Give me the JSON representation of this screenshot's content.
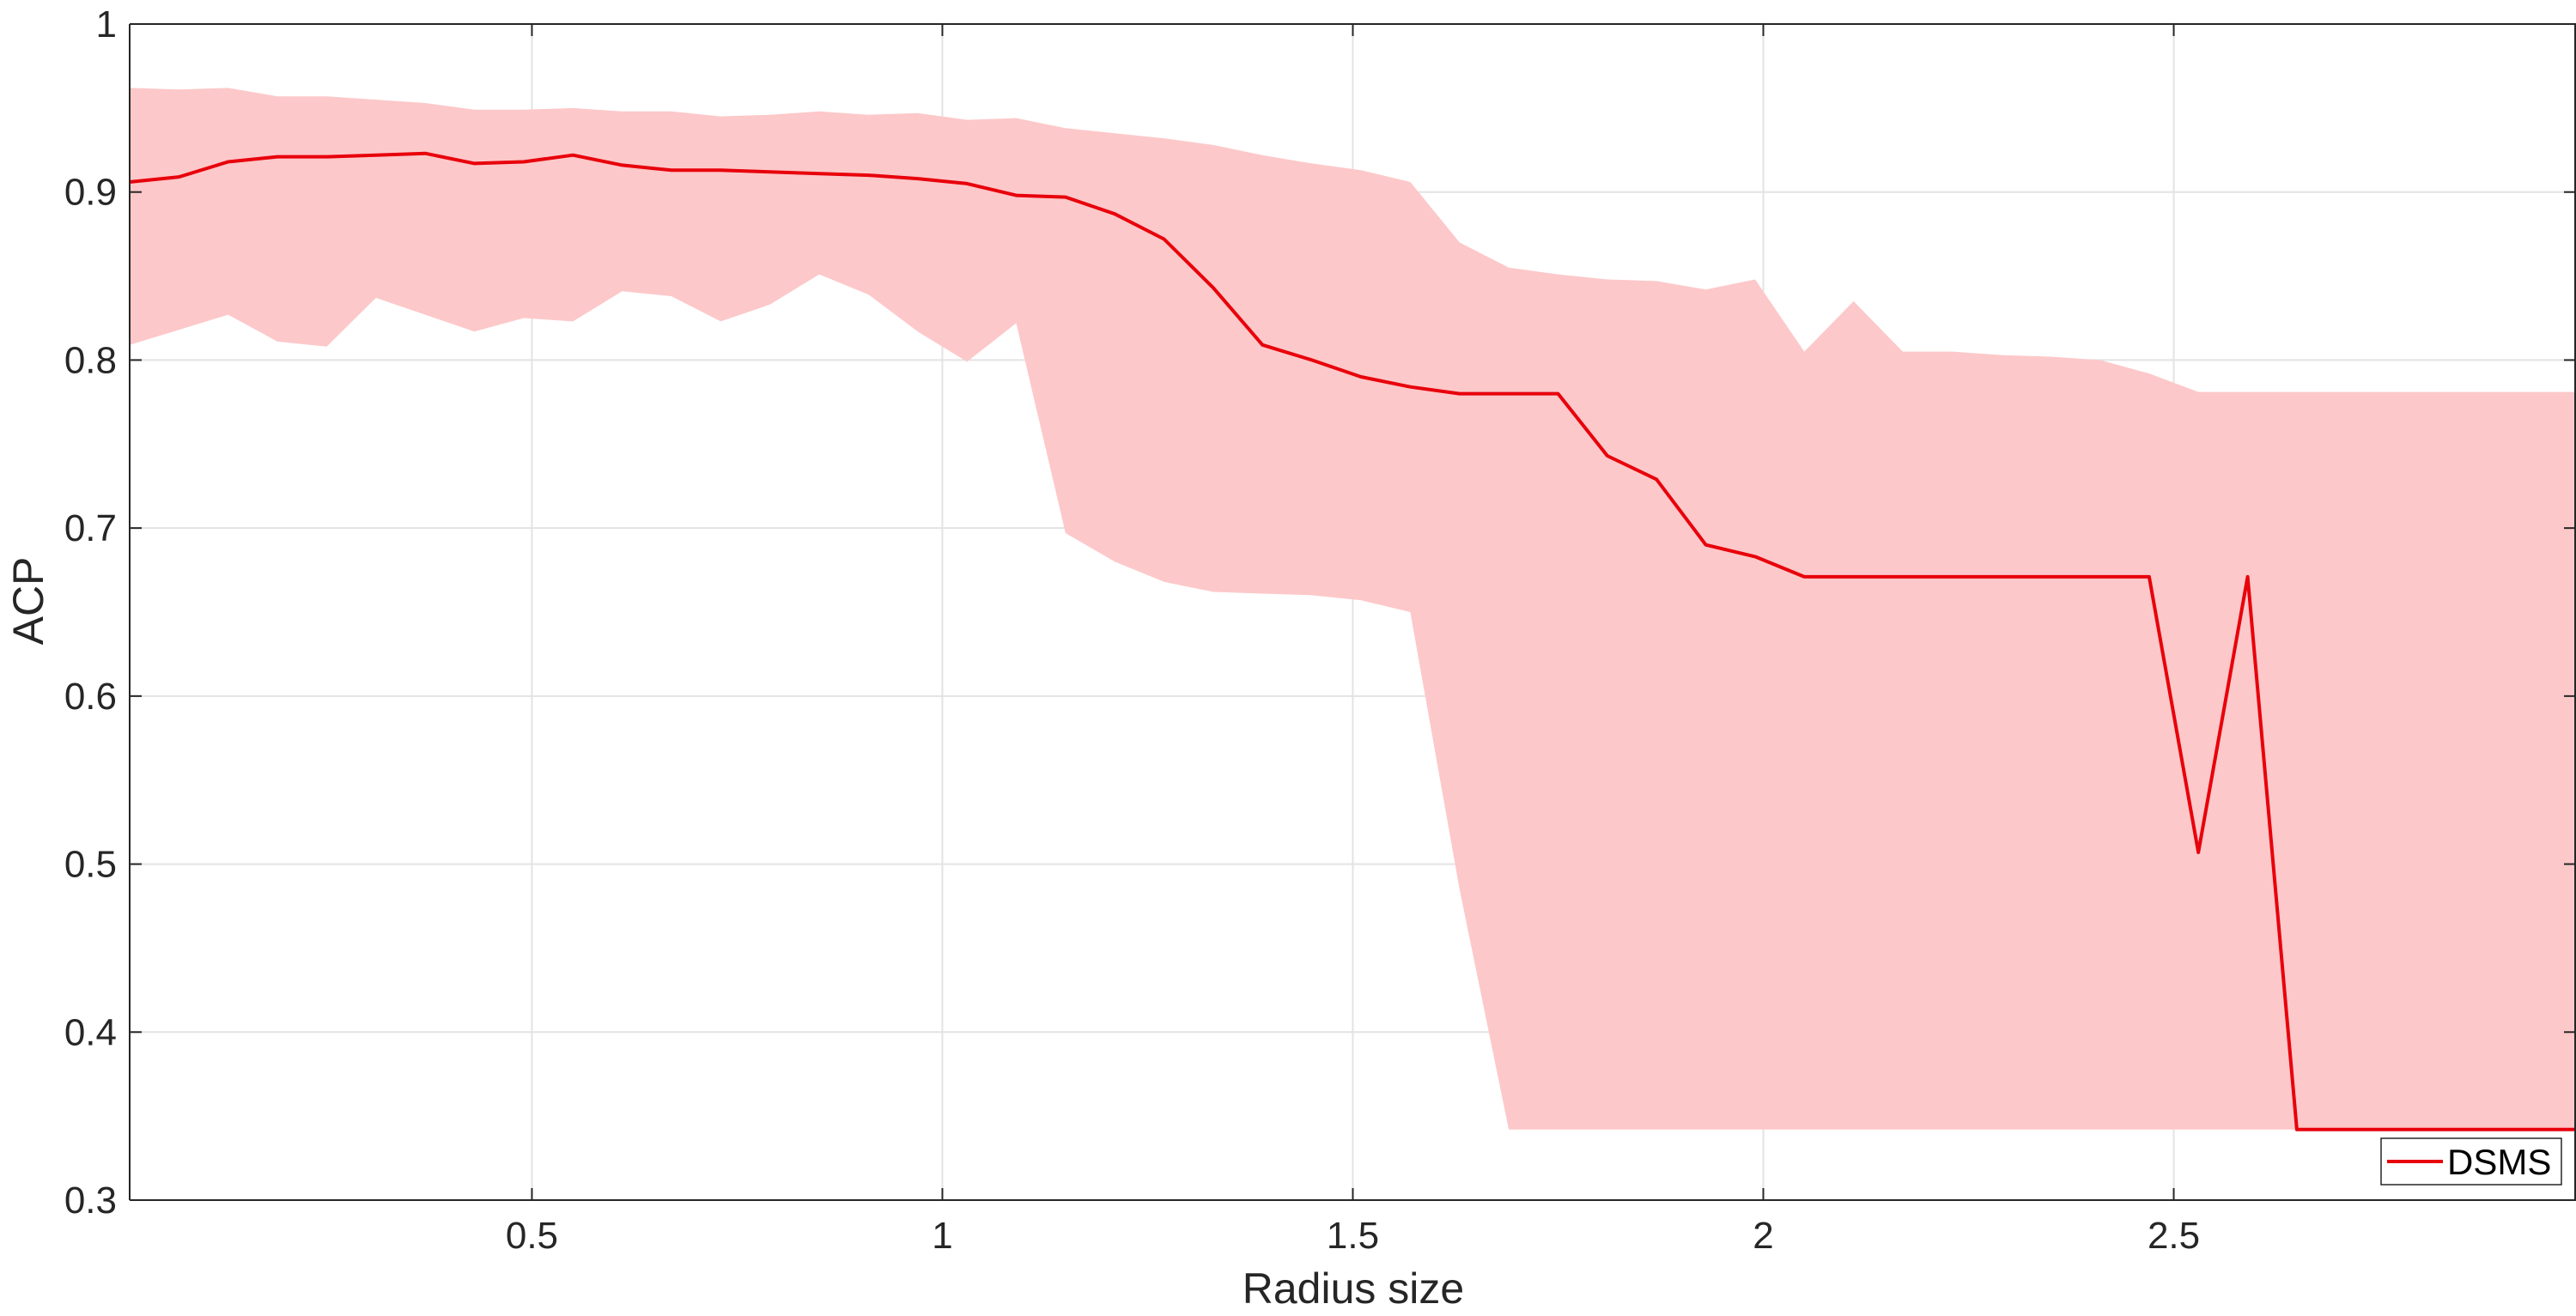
{
  "chart_data": {
    "type": "line",
    "title": "",
    "xlabel": "Radius size",
    "ylabel": "ACP",
    "xlim": [
      0.01,
      2.99
    ],
    "ylim": [
      0.3,
      1.0
    ],
    "xticks": [
      0.5,
      1,
      1.5,
      2,
      2.5
    ],
    "xtick_labels": [
      "0.5",
      "1",
      "1.5",
      "2",
      "2.5"
    ],
    "yticks": [
      0.3,
      0.4,
      0.5,
      0.6,
      0.7,
      0.8,
      0.9,
      1.0
    ],
    "ytick_labels": [
      "0.3",
      "0.4",
      "0.5",
      "0.6",
      "0.7",
      "0.8",
      "0.9",
      "1"
    ],
    "grid": true,
    "legend": {
      "entries": [
        "DSMS"
      ],
      "location": "bottom-right"
    },
    "colors": {
      "line": "#e8000b",
      "band": "#fdc8c9",
      "grid": "#e3e3e3",
      "axis": "#262626"
    },
    "series": [
      {
        "name": "DSMS",
        "x": [
          0.01,
          0.07,
          0.13,
          0.19,
          0.25,
          0.31,
          0.37,
          0.43,
          0.49,
          0.55,
          0.61,
          0.67,
          0.73,
          0.79,
          0.85,
          0.91,
          0.97,
          1.03,
          1.09,
          1.15,
          1.21,
          1.27,
          1.33,
          1.39,
          1.45,
          1.51,
          1.57,
          1.63,
          1.69,
          1.75,
          1.81,
          1.87,
          1.93,
          1.99,
          2.05,
          2.11,
          2.17,
          2.23,
          2.29,
          2.35,
          2.41,
          2.47,
          2.53,
          2.59,
          2.65,
          2.71,
          2.77,
          2.83,
          2.89,
          2.95,
          2.99
        ],
        "y": [
          0.906,
          0.909,
          0.918,
          0.921,
          0.921,
          0.922,
          0.923,
          0.917,
          0.918,
          0.922,
          0.916,
          0.913,
          0.913,
          0.912,
          0.911,
          0.91,
          0.908,
          0.905,
          0.898,
          0.897,
          0.887,
          0.872,
          0.843,
          0.809,
          0.8,
          0.79,
          0.784,
          0.78,
          0.78,
          0.78,
          0.743,
          0.729,
          0.69,
          0.683,
          0.671,
          0.671,
          0.671,
          0.671,
          0.671,
          0.671,
          0.671,
          0.671,
          0.507,
          0.671,
          0.342,
          0.342,
          0.342,
          0.342,
          0.342,
          0.342,
          0.342
        ],
        "upper": [
          0.962,
          0.961,
          0.962,
          0.957,
          0.957,
          0.955,
          0.953,
          0.949,
          0.949,
          0.95,
          0.948,
          0.948,
          0.945,
          0.946,
          0.948,
          0.946,
          0.947,
          0.943,
          0.944,
          0.938,
          0.935,
          0.932,
          0.928,
          0.922,
          0.917,
          0.913,
          0.906,
          0.87,
          0.855,
          0.851,
          0.848,
          0.847,
          0.842,
          0.848,
          0.805,
          0.835,
          0.805,
          0.805,
          0.803,
          0.802,
          0.8,
          0.792,
          0.781,
          0.781,
          0.781,
          0.781,
          0.781,
          0.781,
          0.781,
          0.781,
          0.781
        ],
        "lower": [
          0.809,
          0.818,
          0.827,
          0.811,
          0.808,
          0.837,
          0.827,
          0.817,
          0.825,
          0.823,
          0.841,
          0.838,
          0.823,
          0.833,
          0.851,
          0.839,
          0.817,
          0.799,
          0.822,
          0.697,
          0.68,
          0.668,
          0.662,
          0.661,
          0.66,
          0.657,
          0.65,
          0.485,
          0.342,
          0.342,
          0.342,
          0.342,
          0.342,
          0.342,
          0.342,
          0.342,
          0.342,
          0.342,
          0.342,
          0.342,
          0.342,
          0.342,
          0.342,
          0.342,
          0.342,
          0.342,
          0.342,
          0.342,
          0.342,
          0.342,
          0.342
        ]
      }
    ]
  }
}
